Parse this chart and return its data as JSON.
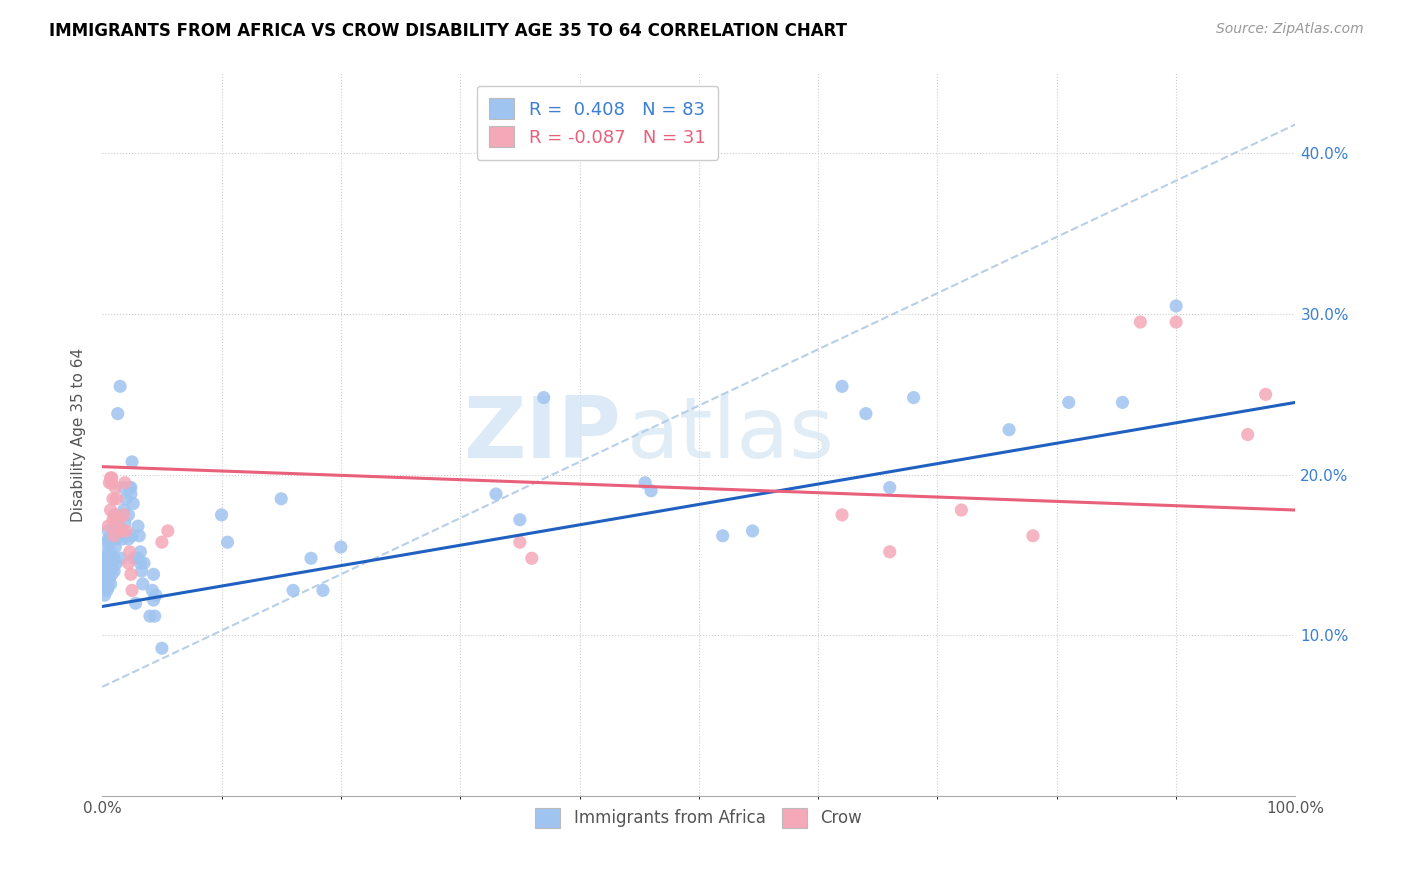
{
  "title": "IMMIGRANTS FROM AFRICA VS CROW DISABILITY AGE 35 TO 64 CORRELATION CHART",
  "source": "Source: ZipAtlas.com",
  "ylabel": "Disability Age 35 to 64",
  "xlim": [
    0,
    1.0
  ],
  "ylim": [
    0,
    0.45
  ],
  "watermark_zip": "ZIP",
  "watermark_atlas": "atlas",
  "blue_color": "#a0c4f0",
  "pink_color": "#f4a8b8",
  "blue_line_color": "#2060c0",
  "pink_line_color": "#e8607a",
  "dashed_line_color": "#b8cfe8",
  "blue_scatter": [
    [
      0.001,
      0.138
    ],
    [
      0.002,
      0.125
    ],
    [
      0.002,
      0.133
    ],
    [
      0.003,
      0.145
    ],
    [
      0.003,
      0.142
    ],
    [
      0.003,
      0.13
    ],
    [
      0.003,
      0.148
    ],
    [
      0.004,
      0.158
    ],
    [
      0.004,
      0.135
    ],
    [
      0.004,
      0.128
    ],
    [
      0.004,
      0.14
    ],
    [
      0.004,
      0.143
    ],
    [
      0.004,
      0.152
    ],
    [
      0.005,
      0.13
    ],
    [
      0.005,
      0.138
    ],
    [
      0.005,
      0.145
    ],
    [
      0.005,
      0.15
    ],
    [
      0.005,
      0.16
    ],
    [
      0.005,
      0.165
    ],
    [
      0.006,
      0.135
    ],
    [
      0.006,
      0.14
    ],
    [
      0.006,
      0.148
    ],
    [
      0.006,
      0.158
    ],
    [
      0.007,
      0.132
    ],
    [
      0.007,
      0.145
    ],
    [
      0.007,
      0.152
    ],
    [
      0.007,
      0.16
    ],
    [
      0.008,
      0.138
    ],
    [
      0.008,
      0.148
    ],
    [
      0.009,
      0.16
    ],
    [
      0.009,
      0.142
    ],
    [
      0.01,
      0.14
    ],
    [
      0.01,
      0.148
    ],
    [
      0.01,
      0.165
    ],
    [
      0.011,
      0.175
    ],
    [
      0.011,
      0.155
    ],
    [
      0.012,
      0.16
    ],
    [
      0.012,
      0.145
    ],
    [
      0.013,
      0.238
    ],
    [
      0.013,
      0.162
    ],
    [
      0.014,
      0.17
    ],
    [
      0.015,
      0.255
    ],
    [
      0.016,
      0.148
    ],
    [
      0.016,
      0.175
    ],
    [
      0.017,
      0.16
    ],
    [
      0.018,
      0.178
    ],
    [
      0.018,
      0.192
    ],
    [
      0.019,
      0.17
    ],
    [
      0.02,
      0.185
    ],
    [
      0.021,
      0.162
    ],
    [
      0.022,
      0.16
    ],
    [
      0.022,
      0.175
    ],
    [
      0.023,
      0.192
    ],
    [
      0.024,
      0.188
    ],
    [
      0.024,
      0.192
    ],
    [
      0.025,
      0.208
    ],
    [
      0.025,
      0.162
    ],
    [
      0.026,
      0.182
    ],
    [
      0.027,
      0.148
    ],
    [
      0.028,
      0.12
    ],
    [
      0.03,
      0.168
    ],
    [
      0.03,
      0.148
    ],
    [
      0.031,
      0.162
    ],
    [
      0.032,
      0.145
    ],
    [
      0.032,
      0.152
    ],
    [
      0.033,
      0.14
    ],
    [
      0.034,
      0.132
    ],
    [
      0.035,
      0.145
    ],
    [
      0.04,
      0.112
    ],
    [
      0.042,
      0.128
    ],
    [
      0.043,
      0.122
    ],
    [
      0.043,
      0.138
    ],
    [
      0.044,
      0.112
    ],
    [
      0.045,
      0.125
    ],
    [
      0.05,
      0.092
    ],
    [
      0.1,
      0.175
    ],
    [
      0.105,
      0.158
    ],
    [
      0.15,
      0.185
    ],
    [
      0.16,
      0.128
    ],
    [
      0.175,
      0.148
    ],
    [
      0.185,
      0.128
    ],
    [
      0.2,
      0.155
    ],
    [
      0.33,
      0.188
    ],
    [
      0.35,
      0.172
    ],
    [
      0.37,
      0.248
    ],
    [
      0.455,
      0.195
    ],
    [
      0.46,
      0.19
    ],
    [
      0.52,
      0.162
    ],
    [
      0.545,
      0.165
    ],
    [
      0.62,
      0.255
    ],
    [
      0.64,
      0.238
    ],
    [
      0.66,
      0.192
    ],
    [
      0.68,
      0.248
    ],
    [
      0.76,
      0.228
    ],
    [
      0.81,
      0.245
    ],
    [
      0.855,
      0.245
    ],
    [
      0.9,
      0.305
    ]
  ],
  "pink_scatter": [
    [
      0.005,
      0.168
    ],
    [
      0.006,
      0.195
    ],
    [
      0.007,
      0.178
    ],
    [
      0.007,
      0.198
    ],
    [
      0.008,
      0.195
    ],
    [
      0.008,
      0.198
    ],
    [
      0.009,
      0.172
    ],
    [
      0.009,
      0.185
    ],
    [
      0.01,
      0.162
    ],
    [
      0.01,
      0.175
    ],
    [
      0.011,
      0.192
    ],
    [
      0.012,
      0.185
    ],
    [
      0.014,
      0.172
    ],
    [
      0.015,
      0.165
    ],
    [
      0.016,
      0.165
    ],
    [
      0.018,
      0.175
    ],
    [
      0.019,
      0.195
    ],
    [
      0.02,
      0.165
    ],
    [
      0.022,
      0.145
    ],
    [
      0.023,
      0.152
    ],
    [
      0.024,
      0.138
    ],
    [
      0.025,
      0.128
    ],
    [
      0.05,
      0.158
    ],
    [
      0.055,
      0.165
    ],
    [
      0.35,
      0.158
    ],
    [
      0.36,
      0.148
    ],
    [
      0.62,
      0.175
    ],
    [
      0.66,
      0.152
    ],
    [
      0.72,
      0.178
    ],
    [
      0.78,
      0.162
    ],
    [
      0.87,
      0.295
    ],
    [
      0.9,
      0.295
    ],
    [
      0.96,
      0.225
    ],
    [
      0.975,
      0.25
    ]
  ],
  "blue_line": [
    [
      0.0,
      0.118
    ],
    [
      1.0,
      0.245
    ]
  ],
  "pink_line": [
    [
      0.0,
      0.205
    ],
    [
      1.0,
      0.178
    ]
  ],
  "dashed_line": [
    [
      0.0,
      0.068
    ],
    [
      1.0,
      0.418
    ]
  ]
}
